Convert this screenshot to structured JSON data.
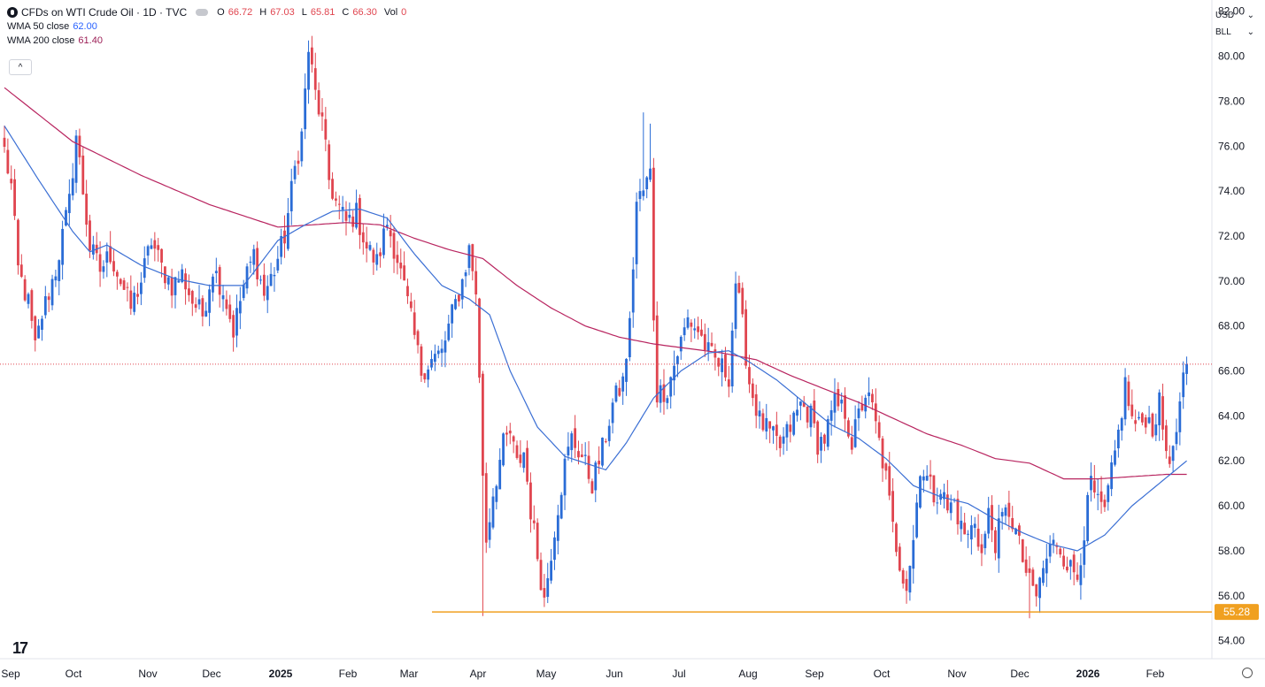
{
  "legend": {
    "title": "CFDs on WTI Crude Oil · 1D · TVC",
    "o_label": "O",
    "o_value": "66.72",
    "h_label": "H",
    "h_value": "67.03",
    "l_label": "L",
    "l_value": "65.81",
    "c_label": "C",
    "c_value": "66.30",
    "vol_label": "Vol",
    "vol_value": "0",
    "wma50_label": "WMA 50 close",
    "wma50_value": "62.00",
    "wma200_label": "WMA 200 close",
    "wma200_value": "61.40"
  },
  "toolbar": {
    "currency": "USD",
    "unit": "BLL",
    "collapse_glyph": "^"
  },
  "colors": {
    "up": "#2a6cd6",
    "down": "#e0454f",
    "wma50": "#3b6fd4",
    "wma200": "#b8245f",
    "support": "#f0a020",
    "support_label_bg": "#f0a020",
    "price_line": "#e0454f"
  },
  "chart_data": {
    "type": "candlestick",
    "title": "CFDs on WTI Crude Oil · 1D · TVC",
    "ylim": [
      53.2,
      82.5
    ],
    "y_ticks": [
      54,
      56,
      58,
      60,
      62,
      64,
      66,
      68,
      70,
      72,
      74,
      76,
      78,
      80
    ],
    "y_tick_labels": [
      "54.00",
      "56.00",
      "58.00",
      "60.00",
      "62.00",
      "64.00",
      "66.00",
      "68.00",
      "70.00",
      "72.00",
      "74.00",
      "76.00",
      "78.00",
      "80.00"
    ],
    "x_months": [
      "Sep",
      "Oct",
      "Nov",
      "Dec",
      "2025",
      "Feb",
      "Mar",
      "Apr",
      "May",
      "Jun",
      "Jul",
      "Aug",
      "Sep",
      "Oct",
      "Nov",
      "Dec",
      "2026",
      "Feb"
    ],
    "x_month_bold": [
      false,
      false,
      false,
      false,
      true,
      false,
      false,
      false,
      false,
      false,
      false,
      false,
      false,
      false,
      false,
      false,
      true,
      false
    ],
    "last_price": 66.3,
    "support_level": 55.28,
    "support_label": "55.28",
    "close_anchors": [
      [
        0,
        75.8
      ],
      [
        2,
        74.2
      ],
      [
        4,
        70.5
      ],
      [
        7,
        69.0
      ],
      [
        9,
        67.0
      ],
      [
        11,
        68.5
      ],
      [
        13,
        69.5
      ],
      [
        15,
        70.5
      ],
      [
        17,
        72.0
      ],
      [
        19,
        73.5
      ],
      [
        21,
        76.5
      ],
      [
        23,
        74.0
      ],
      [
        25,
        71.5
      ],
      [
        28,
        70.5
      ],
      [
        31,
        71.2
      ],
      [
        34,
        70.0
      ],
      [
        37,
        68.8
      ],
      [
        40,
        70.0
      ],
      [
        43,
        71.8
      ],
      [
        46,
        70.6
      ],
      [
        49,
        69.8
      ],
      [
        52,
        70.3
      ],
      [
        55,
        69.1
      ],
      [
        58,
        68.5
      ],
      [
        61,
        70.6
      ],
      [
        64,
        69.6
      ],
      [
        67,
        67.8
      ],
      [
        70,
        69.8
      ],
      [
        73,
        71.2
      ],
      [
        76,
        69.4
      ],
      [
        79,
        70.5
      ],
      [
        82,
        72.0
      ],
      [
        85,
        75.0
      ],
      [
        87,
        76.5
      ],
      [
        89,
        80.3
      ],
      [
        91,
        78.3
      ],
      [
        93,
        77.0
      ],
      [
        95,
        74.5
      ],
      [
        97,
        73.5
      ],
      [
        100,
        72.6
      ],
      [
        103,
        73.0
      ],
      [
        106,
        71.5
      ],
      [
        109,
        70.8
      ],
      [
        112,
        72.6
      ],
      [
        115,
        71.0
      ],
      [
        118,
        69.0
      ],
      [
        120,
        67.5
      ],
      [
        122,
        66.0
      ],
      [
        125,
        66.5
      ],
      [
        128,
        66.8
      ],
      [
        131,
        68.5
      ],
      [
        134,
        70.0
      ],
      [
        136,
        71.4
      ],
      [
        138,
        69.6
      ],
      [
        139,
        65.5
      ],
      [
        140,
        61.5
      ],
      [
        141,
        58.5
      ],
      [
        143,
        60.6
      ],
      [
        146,
        62.7
      ],
      [
        148,
        63.2
      ],
      [
        150,
        61.8
      ],
      [
        152,
        62.4
      ],
      [
        154,
        59.8
      ],
      [
        156,
        57.8
      ],
      [
        158,
        55.8
      ],
      [
        160,
        58.0
      ],
      [
        162,
        60.0
      ],
      [
        164,
        61.8
      ],
      [
        166,
        63.0
      ],
      [
        169,
        62.2
      ],
      [
        172,
        61.0
      ],
      [
        175,
        62.5
      ],
      [
        178,
        64.5
      ],
      [
        181,
        65.5
      ],
      [
        183,
        68.0
      ],
      [
        185,
        73.5
      ],
      [
        187,
        74.0
      ],
      [
        189,
        74.8
      ],
      [
        190,
        68.5
      ],
      [
        191,
        65.0
      ],
      [
        194,
        65.2
      ],
      [
        197,
        66.8
      ],
      [
        200,
        68.3
      ],
      [
        203,
        67.8
      ],
      [
        206,
        66.8
      ],
      [
        209,
        66.3
      ],
      [
        212,
        65.8
      ],
      [
        214,
        70.0
      ],
      [
        216,
        68.0
      ],
      [
        218,
        65.5
      ],
      [
        221,
        63.8
      ],
      [
        224,
        63.2
      ],
      [
        227,
        62.6
      ],
      [
        230,
        63.5
      ],
      [
        233,
        64.5
      ],
      [
        236,
        64.0
      ],
      [
        238,
        62.8
      ],
      [
        240,
        63.0
      ],
      [
        243,
        64.5
      ],
      [
        246,
        64.2
      ],
      [
        248,
        62.8
      ],
      [
        250,
        64.0
      ],
      [
        252,
        65.0
      ],
      [
        254,
        64.3
      ],
      [
        256,
        62.8
      ],
      [
        258,
        61.2
      ],
      [
        260,
        59.0
      ],
      [
        262,
        57.5
      ],
      [
        264,
        56.5
      ],
      [
        266,
        58.5
      ],
      [
        268,
        61.8
      ],
      [
        270,
        61.2
      ],
      [
        272,
        60.5
      ],
      [
        274,
        60.8
      ],
      [
        276,
        59.8
      ],
      [
        278,
        60.2
      ],
      [
        280,
        59.0
      ],
      [
        282,
        58.6
      ],
      [
        284,
        59.4
      ],
      [
        286,
        57.8
      ],
      [
        288,
        59.6
      ],
      [
        290,
        58.4
      ],
      [
        292,
        59.4
      ],
      [
        294,
        59.8
      ],
      [
        296,
        58.8
      ],
      [
        298,
        57.6
      ],
      [
        300,
        56.5
      ],
      [
        302,
        56.0
      ],
      [
        304,
        57.2
      ],
      [
        306,
        58.1
      ],
      [
        308,
        58.4
      ],
      [
        310,
        57.8
      ],
      [
        312,
        57.2
      ],
      [
        314,
        56.9
      ],
      [
        316,
        58.9
      ],
      [
        318,
        61.0
      ],
      [
        320,
        60.0
      ],
      [
        322,
        59.7
      ],
      [
        324,
        61.4
      ],
      [
        326,
        63.2
      ],
      [
        328,
        65.4
      ],
      [
        330,
        63.8
      ],
      [
        332,
        63.5
      ],
      [
        334,
        64.0
      ],
      [
        336,
        63.5
      ],
      [
        338,
        64.5
      ],
      [
        340,
        62.5
      ],
      [
        342,
        62.2
      ],
      [
        344,
        64.5
      ],
      [
        346,
        66.3
      ]
    ],
    "wma50_anchors": [
      [
        0,
        76.9
      ],
      [
        10,
        74.5
      ],
      [
        20,
        72.2
      ],
      [
        25,
        71.3
      ],
      [
        30,
        71.6
      ],
      [
        40,
        70.7
      ],
      [
        50,
        70.1
      ],
      [
        60,
        69.8
      ],
      [
        70,
        69.8
      ],
      [
        80,
        71.8
      ],
      [
        88,
        72.5
      ],
      [
        96,
        73.1
      ],
      [
        104,
        73.2
      ],
      [
        112,
        72.8
      ],
      [
        120,
        71.2
      ],
      [
        128,
        69.8
      ],
      [
        136,
        69.2
      ],
      [
        142,
        68.5
      ],
      [
        148,
        66.0
      ],
      [
        156,
        63.5
      ],
      [
        164,
        62.2
      ],
      [
        170,
        61.9
      ],
      [
        176,
        61.6
      ],
      [
        182,
        62.8
      ],
      [
        190,
        64.8
      ],
      [
        198,
        66.0
      ],
      [
        206,
        66.8
      ],
      [
        212,
        66.9
      ],
      [
        218,
        66.4
      ],
      [
        226,
        65.6
      ],
      [
        234,
        64.6
      ],
      [
        242,
        63.6
      ],
      [
        250,
        63.0
      ],
      [
        258,
        62.1
      ],
      [
        266,
        60.9
      ],
      [
        274,
        60.4
      ],
      [
        282,
        60.1
      ],
      [
        290,
        59.4
      ],
      [
        298,
        58.8
      ],
      [
        306,
        58.3
      ],
      [
        314,
        58.0
      ],
      [
        322,
        58.7
      ],
      [
        330,
        60.0
      ],
      [
        338,
        61.0
      ],
      [
        346,
        62.0
      ]
    ],
    "wma200_anchors": [
      [
        0,
        78.6
      ],
      [
        20,
        76.2
      ],
      [
        40,
        74.7
      ],
      [
        60,
        73.4
      ],
      [
        80,
        72.4
      ],
      [
        90,
        72.5
      ],
      [
        100,
        72.6
      ],
      [
        110,
        72.5
      ],
      [
        120,
        71.9
      ],
      [
        130,
        71.4
      ],
      [
        140,
        71.0
      ],
      [
        150,
        69.8
      ],
      [
        160,
        68.8
      ],
      [
        170,
        68.0
      ],
      [
        180,
        67.5
      ],
      [
        190,
        67.2
      ],
      [
        200,
        67.0
      ],
      [
        210,
        66.8
      ],
      [
        220,
        66.5
      ],
      [
        230,
        65.8
      ],
      [
        240,
        65.2
      ],
      [
        250,
        64.6
      ],
      [
        260,
        63.9
      ],
      [
        270,
        63.2
      ],
      [
        280,
        62.7
      ],
      [
        290,
        62.1
      ],
      [
        300,
        61.9
      ],
      [
        310,
        61.2
      ],
      [
        320,
        61.2
      ],
      [
        330,
        61.3
      ],
      [
        340,
        61.4
      ],
      [
        346,
        61.4
      ]
    ]
  }
}
